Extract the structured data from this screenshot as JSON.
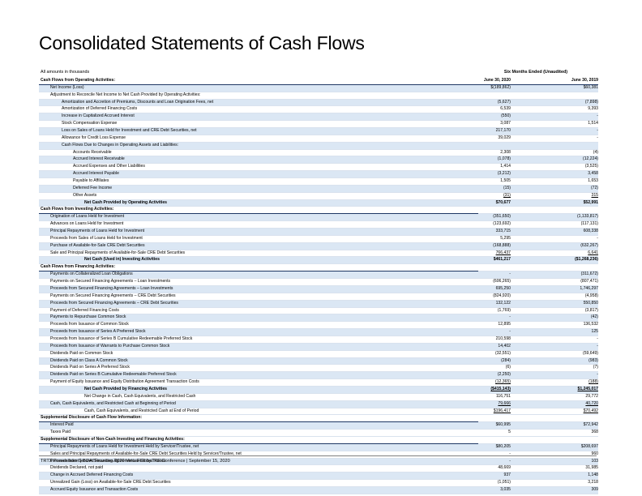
{
  "title": "Consolidated Statements of Cash Flows",
  "note": "All amounts in thousands",
  "period": "Six Months Ended  (Unaudited)",
  "columns": {
    "c1": "June 30, 2020",
    "c2": "June 30, 2019"
  },
  "footer": "TRTX Presentation | BOA Securities 2020 Virtual Global RE Conference | September 15, 2020",
  "rows": [
    {
      "label": "Net Income (Loss)",
      "v1": "$(189,862)",
      "v2": "$60,381",
      "indent": 1,
      "shade": true
    },
    {
      "label": "Adjustment to Reconcile Net Income to Net Cash Provided by Operating Activities:",
      "v1": "",
      "v2": "",
      "indent": 1
    },
    {
      "label": "Amortization and Accretion of Premiums, Discounts and Loan Origination Fees, net",
      "v1": "(5,627)",
      "v2": "(7,898)",
      "indent": 2,
      "shade": true
    },
    {
      "label": "Amortization of Deferred Financing Costs",
      "v1": "6,539",
      "v2": "9,393",
      "indent": 2
    },
    {
      "label": "Increase in Capitalized Accrued Interest",
      "v1": "(550)",
      "v2": "-",
      "indent": 2,
      "shade": true
    },
    {
      "label": "Stock Compensation Expense",
      "v1": "3,087",
      "v2": "1,514",
      "indent": 2
    },
    {
      "label": "Loss on Sales of Loans Held for Investment and CRE Debt Securities, net",
      "v1": "217,170",
      "v2": "-",
      "indent": 2,
      "shade": true
    },
    {
      "label": "Allowance for Credit Loss Expense",
      "v1": "39,029",
      "v2": "-",
      "indent": 2
    },
    {
      "label": "Cash Flows Due to Changes in Operating Assets and Liabilities:",
      "v1": "",
      "v2": "",
      "indent": 2,
      "shade": true
    },
    {
      "label": "Accounts Receivable",
      "v1": "2,308",
      "v2": "(4)",
      "indent": 3
    },
    {
      "label": "Accrued Interest Receivable",
      "v1": "(1,078)",
      "v2": "(12,224)",
      "indent": 3,
      "shade": true
    },
    {
      "label": "Accrued Expenses and Other Liabilities",
      "v1": "1,414",
      "v2": "(3,525)",
      "indent": 3
    },
    {
      "label": "Accrued Interest Payable",
      "v1": "(3,212)",
      "v2": "3,458",
      "indent": 3,
      "shade": true
    },
    {
      "label": "Payable to Affiliates",
      "v1": "1,505",
      "v2": "1,653",
      "indent": 3
    },
    {
      "label": "Deferred Fee Income",
      "v1": "(15)",
      "v2": "(72)",
      "indent": 3,
      "shade": true
    },
    {
      "label": "Other Assets",
      "v1": "(31)",
      "v2": "315",
      "indent": 3,
      "ul": true
    },
    {
      "label": "Net Cash Provided by Operating Activities",
      "v1": "$70,677",
      "v2": "$52,991",
      "indent": 4,
      "bold": true,
      "shade": true
    },
    {
      "label": "Cash Flows from Investing Activities:",
      "v1": "",
      "v2": "",
      "indent": 0,
      "section": true
    },
    {
      "label": "Origination of Loans Held for Investment",
      "v1": "(351,650)",
      "v2": "(1,133,817)",
      "indent": 1,
      "shade": true
    },
    {
      "label": "Advances on Loans Held for Investment",
      "v1": "(123,692)",
      "v2": "(117,131)",
      "indent": 1
    },
    {
      "label": "Principal Repayments of Loans Held for Investment",
      "v1": "333,715",
      "v2": "608,338",
      "indent": 1,
      "shade": true
    },
    {
      "label": "Proceeds from Sales of Loans Held for Investment",
      "v1": "5,295",
      "v2": "-",
      "indent": 1
    },
    {
      "label": "Purchase of Available-for-Sale CRE Debt Securities",
      "v1": "(168,888)",
      "v2": "(632,267)",
      "indent": 1,
      "shade": true
    },
    {
      "label": "Sale and Principal Repayments of Available-for-Sale CRE Debt Securities",
      "v1": "766,437",
      "v2": "6,641",
      "indent": 1,
      "ul": true
    },
    {
      "label": "Net Cash (Used in) Investing Activities",
      "v1": "$461,217",
      "v2": "($1,268,236)",
      "indent": 4,
      "bold": true,
      "shade": true
    },
    {
      "label": "Cash Flows from Financing Activities:",
      "v1": "",
      "v2": "",
      "indent": 0,
      "section": true
    },
    {
      "label": "Payments on Collateralized Loan Obligations",
      "v1": "-",
      "v2": "(311,672)",
      "indent": 1,
      "shade": true
    },
    {
      "label": "Payments on Secured Financing Agreements – Loan Investments",
      "v1": "(606,265)",
      "v2": "(807,471)",
      "indent": 1
    },
    {
      "label": "Proceeds from Secured Financing Agreements – Loan Investments",
      "v1": "695,250",
      "v2": "1,746,297",
      "indent": 1,
      "shade": true
    },
    {
      "label": "Payments on Secured Financing Agreements – CRE Debt Securities",
      "v1": "(824,920)",
      "v2": "(4,958)",
      "indent": 1
    },
    {
      "label": "Proceeds from Secured Financing Agreements – CRE Debt Securities",
      "v1": "132,122",
      "v2": "550,850",
      "indent": 1,
      "shade": true
    },
    {
      "label": "Payment of Deferred Financing Costs",
      "v1": "(1,769)",
      "v2": "(3,817)",
      "indent": 1
    },
    {
      "label": "Payments to Repurchase Common Stock",
      "v1": "-",
      "v2": "(42)",
      "indent": 1,
      "shade": true
    },
    {
      "label": "Proceeds from Issuance of Common Stock",
      "v1": "12,895",
      "v2": "136,532",
      "indent": 1
    },
    {
      "label": "Proceeds from Issuance of Series A Preferred Stock",
      "v1": "-",
      "v2": "125",
      "indent": 1,
      "shade": true
    },
    {
      "label": "Proceeds from Issuance of Series B Cumulative Redeemable Preferred Stock",
      "v1": "210,598",
      "v2": "-",
      "indent": 1
    },
    {
      "label": "Proceeds from Issuance of Warrants to Purchase Common Stock",
      "v1": "14,402",
      "v2": "-",
      "indent": 1,
      "shade": true
    },
    {
      "label": "Dividends Paid on Common Stock",
      "v1": "(32,551)",
      "v2": "(59,649)",
      "indent": 1
    },
    {
      "label": "Dividends Paid on Class A Common Stock",
      "v1": "(284)",
      "v2": "(983)",
      "indent": 1,
      "shade": true
    },
    {
      "label": "Dividends Paid on Series A Preferred Stock",
      "v1": "(6)",
      "v2": "(7)",
      "indent": 1
    },
    {
      "label": "Dividends Paid on Series B Cumulative Redeemable Preferred Stock",
      "v1": "(2,250)",
      "v2": "-",
      "indent": 1,
      "shade": true
    },
    {
      "label": "Payment of Equity Issuance and Equity Distribution Agreement Transaction Costs",
      "v1": "(12,365)",
      "v2": "(188)",
      "indent": 1,
      "ul": true
    },
    {
      "label": "Net Cash Provided by Financing Activities",
      "v1": "($415,143)",
      "v2": "$1,245,017",
      "indent": 4,
      "bold": true,
      "ul": true,
      "shade": true
    },
    {
      "label": "Net Change in Cash, Cash Equivalents, and Restricted Cash",
      "v1": "116,751",
      "v2": "29,772",
      "indent": 4
    },
    {
      "label": "Cash, Cash Equivalents, and Restricted Cash at Beginning of Period",
      "v1": "79,666",
      "v2": "40,720",
      "indent": 1,
      "ul": true,
      "shade": true
    },
    {
      "label": "Cash, Cash Equivalents, and Restricted Cash at End of Period",
      "v1": "$196,417",
      "v2": "$70,492",
      "indent": 4,
      "dul": true
    },
    {
      "label": "Supplemental Disclosure of Cash Flow Information:",
      "v1": "",
      "v2": "",
      "indent": 0,
      "section": true
    },
    {
      "label": "Interest Paid",
      "v1": "$60,995",
      "v2": "$72,942",
      "indent": 1,
      "shade": true
    },
    {
      "label": "Taxes Paid",
      "v1": "5",
      "v2": "368",
      "indent": 1
    },
    {
      "label": "Supplemental Disclosure of Non-Cash Investing and Financing Activities:",
      "v1": "",
      "v2": "",
      "indent": 0,
      "section": true
    },
    {
      "label": "Principal Repayments of Loans Held for Investment Held by Servicer/Trustee, net",
      "v1": "$80,205",
      "v2": "$208,697",
      "indent": 1,
      "shade": true
    },
    {
      "label": "Sales and Principal Repayments of Available-for-Sale CRE Debt Securities Held by Servicer/Trustee, net",
      "v1": "-",
      "v2": "960",
      "indent": 1
    },
    {
      "label": "Proceeds from Secured Financing Agreements Held by Trustee",
      "v1": "-",
      "v2": "103",
      "indent": 1,
      "shade": true
    },
    {
      "label": "Dividends Declared, not paid",
      "v1": "48,669",
      "v2": "31,985",
      "indent": 1
    },
    {
      "label": "Change in Accrued Deferred Financing Costs",
      "v1": "937",
      "v2": "1,148",
      "indent": 1,
      "shade": true
    },
    {
      "label": "Unrealized Gain (Loss) on Available-for-Sale CRE Debt Securities",
      "v1": "(1,051)",
      "v2": "3,218",
      "indent": 1
    },
    {
      "label": "Accrued Equity Issuance and Transaction Costs",
      "v1": "3,035",
      "v2": "309",
      "indent": 1,
      "shade": true
    }
  ],
  "first_section": "Cash Flows from Operating Activities:"
}
